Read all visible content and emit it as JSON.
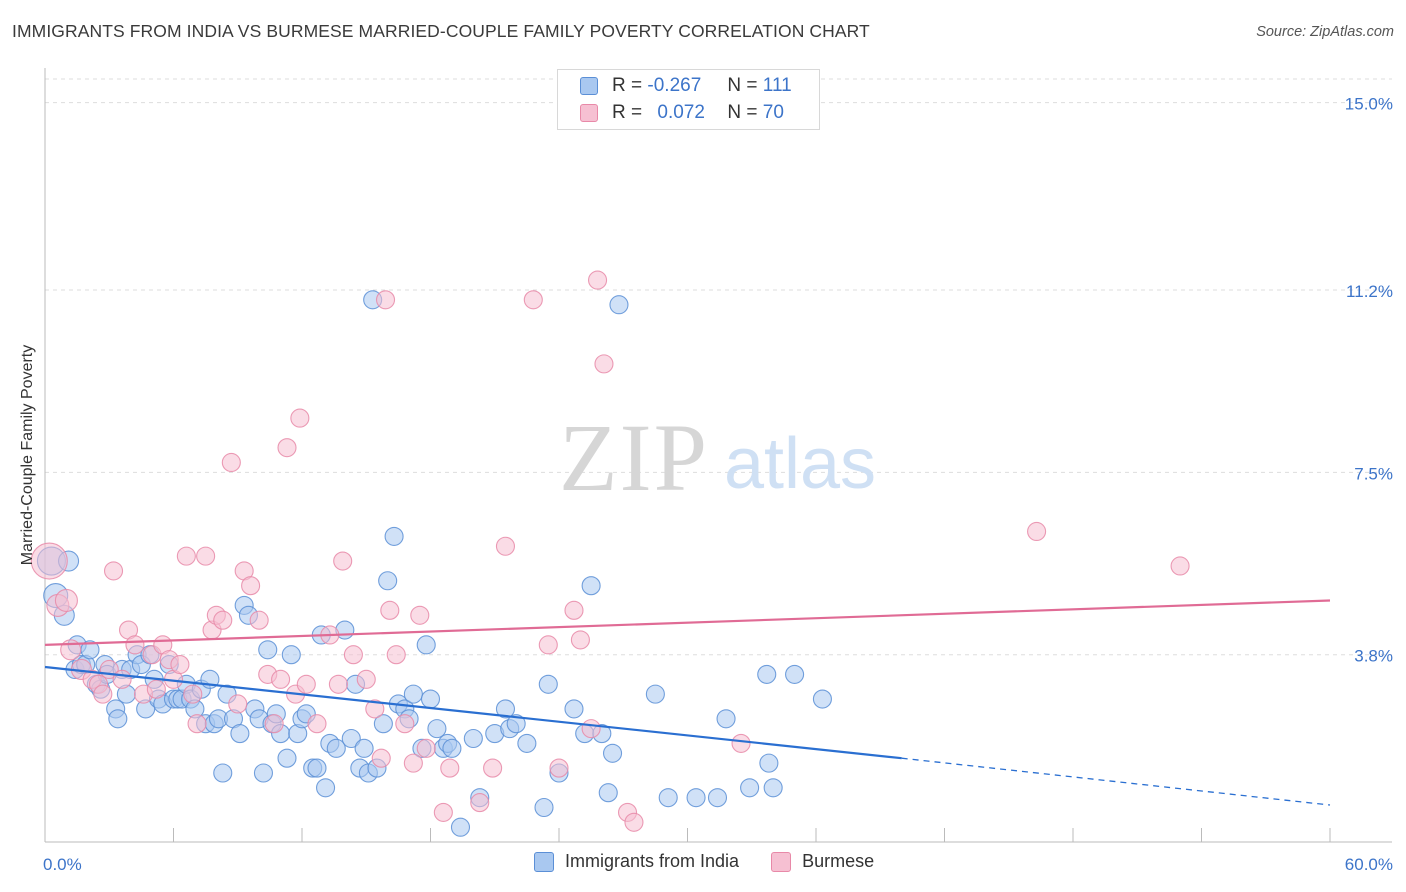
{
  "title": "IMMIGRANTS FROM INDIA VS BURMESE MARRIED-COUPLE FAMILY POVERTY CORRELATION CHART",
  "source": "Source: ZipAtlas.com",
  "watermark": {
    "zip": "ZIP",
    "atlas": "atlas"
  },
  "stats": [
    {
      "r_label": "R =",
      "r_value": "-0.267",
      "n_label": "N =",
      "n_value": "111"
    },
    {
      "r_label": "R =",
      "r_value": "0.072",
      "n_label": "N =",
      "n_value": "70"
    }
  ],
  "legend": [
    {
      "label": "Immigrants from India"
    },
    {
      "label": "Burmese"
    }
  ],
  "colors": {
    "india_fill": "#a9c8f0",
    "india_stroke": "#5b8fd6",
    "india_line": "#2a6fd1",
    "burmese_fill": "#f6c0d2",
    "burmese_stroke": "#e889a8",
    "burmese_line": "#e06b95",
    "tick_label": "#3c74c9",
    "grid": "#dddddd"
  },
  "chart_data": {
    "type": "scatter",
    "title": "IMMIGRANTS FROM INDIA VS BURMESE MARRIED-COUPLE FAMILY POVERTY CORRELATION CHART",
    "xlabel": "",
    "ylabel": "Married-Couple Family Poverty",
    "xlim": [
      0,
      60
    ],
    "ylim": [
      0,
      15.5
    ],
    "x_tick_labels": [
      "0.0%",
      "60.0%"
    ],
    "y_ticks": [
      3.8,
      7.5,
      11.2,
      15.0
    ],
    "y_tick_labels": [
      "3.8%",
      "7.5%",
      "11.2%",
      "15.0%"
    ],
    "grid": true,
    "legend_position": "bottom-center",
    "series": [
      {
        "name": "Immigrants from India",
        "trend": {
          "x0": 0,
          "y0": 3.55,
          "x1": 40,
          "y1": 1.7,
          "dashed_to_x": 60,
          "dashed_to_y": 0.75
        },
        "points": [
          [
            0.3,
            5.7,
            14
          ],
          [
            0.5,
            5.0,
            12
          ],
          [
            0.9,
            4.6,
            10
          ],
          [
            1.1,
            5.7,
            10
          ],
          [
            1.4,
            3.5,
            9
          ],
          [
            1.5,
            4.0,
            9
          ],
          [
            1.7,
            3.6,
            9
          ],
          [
            1.9,
            3.6,
            9
          ],
          [
            2.1,
            3.9,
            9
          ],
          [
            2.4,
            3.2,
            9
          ],
          [
            2.6,
            3.1,
            9
          ],
          [
            2.8,
            3.6,
            9
          ],
          [
            2.9,
            3.4,
            9
          ],
          [
            3.3,
            2.7,
            9
          ],
          [
            3.4,
            2.5,
            9
          ],
          [
            3.6,
            3.5,
            9
          ],
          [
            3.8,
            3.0,
            9
          ],
          [
            4.0,
            3.5,
            9
          ],
          [
            4.3,
            3.8,
            9
          ],
          [
            4.5,
            3.6,
            9
          ],
          [
            4.7,
            2.7,
            9
          ],
          [
            4.9,
            3.8,
            9
          ],
          [
            5.1,
            3.3,
            9
          ],
          [
            5.3,
            2.9,
            9
          ],
          [
            5.5,
            2.8,
            9
          ],
          [
            5.8,
            3.6,
            9
          ],
          [
            6.0,
            2.9,
            9
          ],
          [
            6.2,
            2.9,
            9
          ],
          [
            6.4,
            2.9,
            9
          ],
          [
            6.6,
            3.2,
            9
          ],
          [
            6.8,
            2.9,
            9
          ],
          [
            7.0,
            2.7,
            9
          ],
          [
            7.3,
            3.1,
            9
          ],
          [
            7.5,
            2.4,
            9
          ],
          [
            7.7,
            3.3,
            9
          ],
          [
            7.9,
            2.4,
            9
          ],
          [
            8.1,
            2.5,
            9
          ],
          [
            8.3,
            1.4,
            9
          ],
          [
            8.5,
            3.0,
            9
          ],
          [
            8.8,
            2.5,
            9
          ],
          [
            9.1,
            2.2,
            9
          ],
          [
            9.3,
            4.8,
            9
          ],
          [
            9.5,
            4.6,
            9
          ],
          [
            9.8,
            2.7,
            9
          ],
          [
            10.0,
            2.5,
            9
          ],
          [
            10.2,
            1.4,
            9
          ],
          [
            10.4,
            3.9,
            9
          ],
          [
            10.6,
            2.4,
            9
          ],
          [
            10.8,
            2.6,
            9
          ],
          [
            11.0,
            2.2,
            9
          ],
          [
            11.3,
            1.7,
            9
          ],
          [
            11.5,
            3.8,
            9
          ],
          [
            11.8,
            2.2,
            9
          ],
          [
            12.0,
            2.5,
            9
          ],
          [
            12.2,
            2.6,
            9
          ],
          [
            12.5,
            1.5,
            9
          ],
          [
            12.7,
            1.5,
            9
          ],
          [
            12.9,
            4.2,
            9
          ],
          [
            13.1,
            1.1,
            9
          ],
          [
            13.3,
            2.0,
            9
          ],
          [
            13.6,
            1.9,
            9
          ],
          [
            14.0,
            4.3,
            9
          ],
          [
            14.3,
            2.1,
            9
          ],
          [
            14.5,
            3.2,
            9
          ],
          [
            14.7,
            1.5,
            9
          ],
          [
            14.9,
            1.9,
            9
          ],
          [
            15.1,
            1.4,
            9
          ],
          [
            15.3,
            11.0,
            9
          ],
          [
            15.5,
            1.5,
            9
          ],
          [
            15.8,
            2.4,
            9
          ],
          [
            16.0,
            5.3,
            9
          ],
          [
            16.3,
            6.2,
            9
          ],
          [
            16.5,
            2.8,
            9
          ],
          [
            16.8,
            2.7,
            9
          ],
          [
            17.0,
            2.5,
            9
          ],
          [
            17.2,
            3.0,
            9
          ],
          [
            17.6,
            1.9,
            9
          ],
          [
            17.8,
            4.0,
            9
          ],
          [
            18.0,
            2.9,
            9
          ],
          [
            18.3,
            2.3,
            9
          ],
          [
            18.6,
            1.9,
            9
          ],
          [
            18.8,
            2.0,
            9
          ],
          [
            19.0,
            1.9,
            9
          ],
          [
            19.4,
            0.3,
            9
          ],
          [
            20.0,
            2.1,
            9
          ],
          [
            20.3,
            0.9,
            9
          ],
          [
            21.0,
            2.2,
            9
          ],
          [
            21.5,
            2.7,
            9
          ],
          [
            21.7,
            2.3,
            9
          ],
          [
            22.0,
            2.4,
            9
          ],
          [
            22.5,
            2.0,
            9
          ],
          [
            23.3,
            0.7,
            9
          ],
          [
            23.5,
            3.2,
            9
          ],
          [
            24.0,
            1.4,
            9
          ],
          [
            24.7,
            2.7,
            9
          ],
          [
            25.2,
            2.2,
            9
          ],
          [
            25.5,
            5.2,
            9
          ],
          [
            26.0,
            2.2,
            9
          ],
          [
            26.3,
            1.0,
            9
          ],
          [
            26.5,
            1.8,
            9
          ],
          [
            26.8,
            10.9,
            9
          ],
          [
            28.5,
            3.0,
            9
          ],
          [
            29.1,
            0.9,
            9
          ],
          [
            30.4,
            0.9,
            9
          ],
          [
            31.4,
            0.9,
            9
          ],
          [
            31.8,
            2.5,
            9
          ],
          [
            32.9,
            1.1,
            9
          ],
          [
            33.7,
            3.4,
            9
          ],
          [
            33.8,
            1.6,
            9
          ],
          [
            34.0,
            1.1,
            9
          ],
          [
            35.0,
            3.4,
            9
          ],
          [
            36.3,
            2.9,
            9
          ]
        ]
      },
      {
        "name": "Burmese",
        "trend": {
          "x0": 0,
          "y0": 4.0,
          "x1": 60,
          "y1": 4.9
        },
        "points": [
          [
            0.2,
            5.7,
            18
          ],
          [
            0.6,
            4.8,
            11
          ],
          [
            1.0,
            4.9,
            11
          ],
          [
            1.2,
            3.9,
            10
          ],
          [
            1.7,
            3.5,
            10
          ],
          [
            2.2,
            3.3,
            9
          ],
          [
            2.5,
            3.2,
            9
          ],
          [
            2.7,
            3.0,
            9
          ],
          [
            3.0,
            3.5,
            9
          ],
          [
            3.2,
            5.5,
            9
          ],
          [
            3.6,
            3.3,
            9
          ],
          [
            3.9,
            4.3,
            9
          ],
          [
            4.2,
            4.0,
            9
          ],
          [
            4.6,
            3.0,
            9
          ],
          [
            5.0,
            3.8,
            9
          ],
          [
            5.2,
            3.1,
            9
          ],
          [
            5.5,
            4.0,
            9
          ],
          [
            5.8,
            3.7,
            9
          ],
          [
            6.0,
            3.3,
            9
          ],
          [
            6.3,
            3.6,
            9
          ],
          [
            6.6,
            5.8,
            9
          ],
          [
            6.9,
            3.0,
            9
          ],
          [
            7.1,
            2.4,
            9
          ],
          [
            7.5,
            5.8,
            9
          ],
          [
            7.8,
            4.3,
            9
          ],
          [
            8.0,
            4.6,
            9
          ],
          [
            8.3,
            4.5,
            9
          ],
          [
            8.7,
            7.7,
            9
          ],
          [
            9.0,
            2.8,
            9
          ],
          [
            9.3,
            5.5,
            9
          ],
          [
            9.6,
            5.2,
            9
          ],
          [
            10.0,
            4.5,
            9
          ],
          [
            10.4,
            3.4,
            9
          ],
          [
            10.7,
            2.4,
            9
          ],
          [
            11.0,
            3.3,
            9
          ],
          [
            11.3,
            8.0,
            9
          ],
          [
            11.7,
            3.0,
            9
          ],
          [
            11.9,
            8.6,
            9
          ],
          [
            12.2,
            3.2,
            9
          ],
          [
            12.7,
            2.4,
            9
          ],
          [
            13.3,
            4.2,
            9
          ],
          [
            13.7,
            3.2,
            9
          ],
          [
            13.9,
            5.7,
            9
          ],
          [
            14.4,
            3.8,
            9
          ],
          [
            15.0,
            3.3,
            9
          ],
          [
            15.4,
            2.7,
            9
          ],
          [
            15.7,
            1.7,
            9
          ],
          [
            15.9,
            11.0,
            9
          ],
          [
            16.1,
            4.7,
            9
          ],
          [
            16.4,
            3.8,
            9
          ],
          [
            16.8,
            2.4,
            9
          ],
          [
            17.2,
            1.6,
            9
          ],
          [
            17.5,
            4.6,
            9
          ],
          [
            17.8,
            1.9,
            9
          ],
          [
            18.6,
            0.6,
            9
          ],
          [
            18.9,
            1.5,
            9
          ],
          [
            20.3,
            0.8,
            9
          ],
          [
            20.9,
            1.5,
            9
          ],
          [
            21.5,
            6.0,
            9
          ],
          [
            22.8,
            11.0,
            9
          ],
          [
            23.5,
            4.0,
            9
          ],
          [
            24.0,
            1.5,
            9
          ],
          [
            24.7,
            4.7,
            9
          ],
          [
            25.0,
            4.1,
            9
          ],
          [
            25.5,
            2.3,
            9
          ],
          [
            25.8,
            11.4,
            9
          ],
          [
            26.1,
            9.7,
            9
          ],
          [
            27.2,
            0.6,
            9
          ],
          [
            27.5,
            0.4,
            9
          ],
          [
            32.5,
            2.0,
            9
          ],
          [
            46.3,
            6.3,
            9
          ],
          [
            53.0,
            5.6,
            9
          ]
        ]
      }
    ]
  }
}
